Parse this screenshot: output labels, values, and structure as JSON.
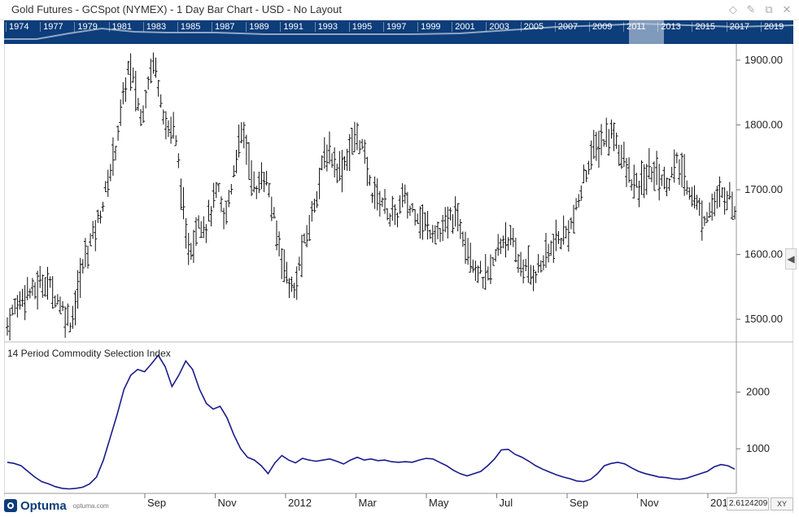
{
  "window": {
    "title": "Gold Futures - GCSpot (NYMEX) - 1 Day Bar Chart - USD - No Layout",
    "controls": [
      {
        "name": "diamond-icon",
        "glyph": "◇"
      },
      {
        "name": "pin-icon",
        "glyph": "✎"
      },
      {
        "name": "restore-icon",
        "glyph": "⧉"
      },
      {
        "name": "close-icon",
        "glyph": "✕"
      }
    ]
  },
  "navigator": {
    "years": [
      "1974",
      "1977",
      "1979",
      "1981",
      "1983",
      "1985",
      "1987",
      "1989",
      "1991",
      "1993",
      "1995",
      "1997",
      "1999",
      "2001",
      "2003",
      "2005",
      "2007",
      "2009",
      "2011",
      "2013",
      "2015",
      "2017",
      "2019"
    ],
    "selected_year": "2011"
  },
  "price_pane": {
    "y_ticks": [
      "1900.00",
      "1800.00",
      "1700.00",
      "1600.00",
      "1500.00"
    ]
  },
  "indicator_pane": {
    "label": "14 Period Commodity Selection Index",
    "y_ticks": [
      "2000",
      "1000"
    ]
  },
  "x_axis": {
    "labels": [
      "Sep",
      "Nov",
      "2012",
      "Mar",
      "May",
      "Jul",
      "Sep",
      "Nov",
      "201"
    ]
  },
  "footer": {
    "logo_text": "Optuma",
    "logo_url": "optuma.com",
    "readout_value": "2.6124209",
    "xy_label": "XY"
  },
  "chart_data": [
    {
      "type": "bar",
      "series_type": "ohlc",
      "ylim": [
        1470,
        1920
      ],
      "price_path": [
        1490,
        1515,
        1530,
        1545,
        1540,
        1555,
        1560,
        1545,
        1530,
        1510,
        1495,
        1540,
        1590,
        1620,
        1645,
        1680,
        1720,
        1770,
        1830,
        1890,
        1860,
        1805,
        1870,
        1900,
        1850,
        1790,
        1800,
        1730,
        1620,
        1610,
        1660,
        1640,
        1670,
        1700,
        1650,
        1700,
        1760,
        1790,
        1740,
        1690,
        1730,
        1700,
        1640,
        1600,
        1560,
        1540,
        1595,
        1630,
        1675,
        1720,
        1760,
        1750,
        1730,
        1745,
        1770,
        1785,
        1750,
        1700,
        1690,
        1680,
        1660,
        1655,
        1690,
        1670,
        1670,
        1650,
        1640,
        1640,
        1630,
        1650,
        1660,
        1645,
        1620,
        1590,
        1570,
        1560,
        1580,
        1610,
        1630,
        1620,
        1590,
        1580,
        1570,
        1575,
        1590,
        1605,
        1620,
        1625,
        1640,
        1660,
        1700,
        1740,
        1760,
        1775,
        1780,
        1790,
        1760,
        1730,
        1710,
        1700,
        1720,
        1730,
        1725,
        1710,
        1720,
        1740,
        1720,
        1700,
        1680,
        1655,
        1670,
        1680,
        1690,
        1695,
        1670
      ],
      "x_labels": [
        "Sep",
        "Nov",
        "2012",
        "Mar",
        "May",
        "Jul",
        "Sep",
        "Nov",
        "201"
      ]
    },
    {
      "type": "line",
      "series": [
        {
          "values": [
            760,
            740,
            700,
            600,
            500,
            420,
            380,
            330,
            300,
            290,
            300,
            320,
            380,
            500,
            800,
            1200,
            1600,
            2050,
            2300,
            2400,
            2360,
            2500,
            2650,
            2450,
            2100,
            2300,
            2550,
            2400,
            2050,
            1800,
            1700,
            1750,
            1550,
            1250,
            1000,
            850,
            800,
            700,
            560,
            750,
            880,
            800,
            750,
            830,
            800,
            780,
            800,
            820,
            780,
            730,
            800,
            850,
            800,
            820,
            790,
            800,
            770,
            760,
            770,
            760,
            800,
            830,
            820,
            760,
            700,
            620,
            560,
            520,
            560,
            600,
            700,
            820,
            980,
            990,
            900,
            850,
            780,
            700,
            640,
            590,
            540,
            500,
            470,
            430,
            420,
            460,
            560,
            700,
            740,
            760,
            730,
            660,
            600,
            560,
            530,
            500,
            490,
            470,
            460,
            480,
            520,
            560,
            600,
            680,
            720,
            700,
            640
          ],
          "ylim": [
            240,
            2800
          ]
        }
      ]
    }
  ]
}
